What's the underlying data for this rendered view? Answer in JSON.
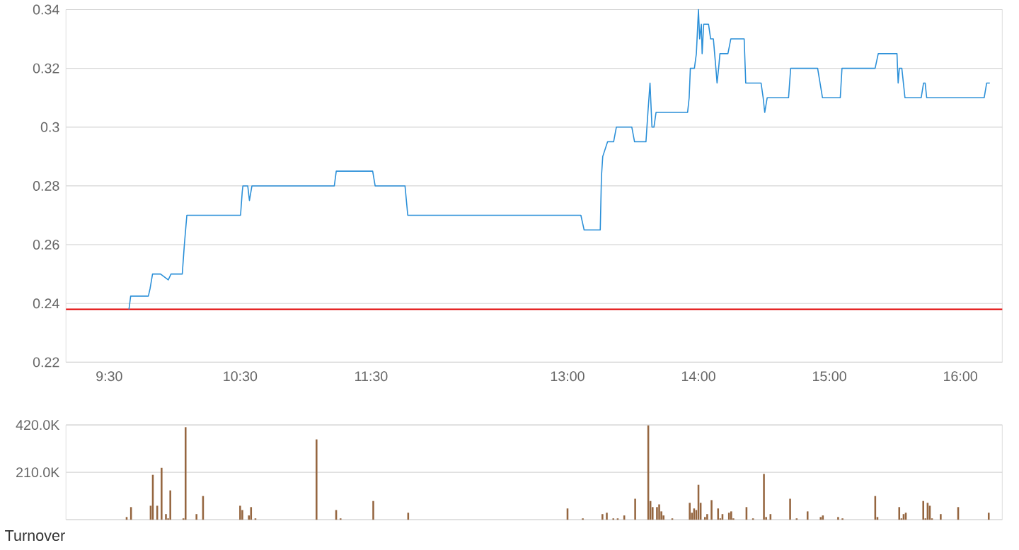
{
  "chart_data": [
    {
      "type": "line",
      "xlim": [
        9.17,
        16.32
      ],
      "ylim": [
        0.22,
        0.34
      ],
      "xticks": [
        {
          "value": 9.5,
          "label": "9:30"
        },
        {
          "value": 10.5,
          "label": "10:30"
        },
        {
          "value": 11.5,
          "label": "11:30"
        },
        {
          "value": 13,
          "label": "13:00"
        },
        {
          "value": 14,
          "label": "14:00"
        },
        {
          "value": 15,
          "label": "15:00"
        },
        {
          "value": 16,
          "label": "16:00"
        }
      ],
      "yticks": [
        0.22,
        0.24,
        0.26,
        0.28,
        0.3,
        0.32,
        0.34
      ],
      "grid": "y",
      "ref_lines": [
        {
          "axis": "y",
          "value": 0.238,
          "color": "#e00000"
        }
      ],
      "series": [
        {
          "color": "#2a8fd8",
          "x": [
            9.651,
            9.664,
            9.799,
            9.812,
            9.831,
            9.892,
            9.951,
            9.972,
            10.058,
            10.074,
            10.093,
            10.503,
            10.516,
            10.521,
            10.558,
            10.571,
            10.59,
            11.219,
            11.234,
            11.512,
            11.531,
            11.759,
            11.78,
            12.0,
            13.0,
            13.102,
            13.127,
            13.25,
            13.259,
            13.269,
            13.306,
            13.352,
            13.373,
            13.491,
            13.512,
            13.599,
            13.614,
            13.63,
            13.645,
            13.66,
            13.676,
            13.917,
            13.929,
            13.938,
            13.969,
            13.984,
            14.0,
            14.009,
            14.022,
            14.028,
            14.04,
            14.077,
            14.093,
            14.114,
            14.133,
            14.142,
            14.154,
            14.164,
            14.225,
            14.247,
            14.349,
            14.361,
            14.478,
            14.494,
            14.506,
            14.525,
            14.688,
            14.704,
            14.91,
            14.947,
            15.083,
            15.096,
            15.349,
            15.373,
            15.516,
            15.525,
            15.534,
            15.553,
            15.565,
            15.577,
            15.701,
            15.719,
            15.731,
            15.743,
            16.182,
            16.201,
            16.225
          ],
          "values": [
            0.238,
            0.2425,
            0.2425,
            0.245,
            0.25,
            0.25,
            0.248,
            0.25,
            0.25,
            0.26,
            0.27,
            0.27,
            0.278,
            0.28,
            0.28,
            0.275,
            0.28,
            0.28,
            0.285,
            0.285,
            0.28,
            0.28,
            0.27,
            0.27,
            0.27,
            0.27,
            0.265,
            0.265,
            0.283,
            0.29,
            0.295,
            0.295,
            0.3,
            0.3,
            0.295,
            0.295,
            0.305,
            0.315,
            0.3,
            0.3,
            0.305,
            0.305,
            0.31,
            0.32,
            0.32,
            0.325,
            0.34,
            0.33,
            0.335,
            0.325,
            0.335,
            0.335,
            0.33,
            0.33,
            0.32,
            0.315,
            0.32,
            0.325,
            0.325,
            0.33,
            0.33,
            0.315,
            0.315,
            0.31,
            0.305,
            0.31,
            0.31,
            0.32,
            0.32,
            0.31,
            0.31,
            0.32,
            0.32,
            0.325,
            0.325,
            0.315,
            0.32,
            0.32,
            0.315,
            0.31,
            0.31,
            0.315,
            0.315,
            0.31,
            0.31,
            0.315,
            0.315
          ]
        }
      ]
    },
    {
      "type": "bar",
      "xlabel": "Turnover",
      "xlim": [
        9.17,
        16.32
      ],
      "ylim": [
        0,
        420000
      ],
      "yticks": [
        {
          "value": 0,
          "label": null
        },
        {
          "value": 210000,
          "label": "210.0K"
        },
        {
          "value": 420000,
          "label": "420.0K"
        }
      ],
      "grid": "y",
      "tick_labels": "y",
      "x": [
        9.6333,
        9.6667,
        9.8167,
        9.8333,
        9.8667,
        9.9,
        9.9333,
        9.95,
        9.9667,
        10.0667,
        10.0833,
        10.1667,
        10.2167,
        10.5,
        10.5167,
        10.5667,
        10.5833,
        10.6167,
        11.0833,
        11.2333,
        11.2667,
        11.5167,
        11.7833,
        13.0,
        13.1167,
        13.2667,
        13.3,
        13.35,
        13.3833,
        13.4333,
        13.5167,
        13.6167,
        13.6333,
        13.65,
        13.6833,
        13.7,
        13.7167,
        13.7333,
        13.8,
        13.9333,
        13.95,
        13.9667,
        13.9833,
        14.0,
        14.0167,
        14.05,
        14.0667,
        14.1,
        14.15,
        14.1667,
        14.1833,
        14.2333,
        14.25,
        14.2667,
        14.3667,
        14.4167,
        14.5,
        14.5167,
        14.55,
        14.7,
        14.75,
        14.8333,
        14.9333,
        14.95,
        15.0667,
        15.1,
        15.35,
        15.3667,
        15.5333,
        15.55,
        15.5667,
        15.5833,
        15.7167,
        15.7333,
        15.75,
        15.7667,
        15.7833,
        15.85,
        15.9833,
        16.2167
      ],
      "series": [
        {
          "color": "#956640",
          "values": [
            12000,
            56000,
            62000,
            199000,
            62000,
            230000,
            25000,
            6000,
            130000,
            6000,
            410000,
            25000,
            105000,
            62000,
            43000,
            19000,
            56000,
            6000,
            356000,
            43000,
            6000,
            83000,
            31000,
            50000,
            6000,
            25000,
            31000,
            6000,
            6000,
            19000,
            93000,
            418000,
            83000,
            56000,
            56000,
            68000,
            37000,
            19000,
            6000,
            75000,
            31000,
            50000,
            43000,
            155000,
            75000,
            12000,
            25000,
            87000,
            50000,
            6000,
            25000,
            31000,
            37000,
            6000,
            56000,
            6000,
            203000,
            12000,
            25000,
            93000,
            6000,
            37000,
            12000,
            19000,
            12000,
            6000,
            105000,
            12000,
            56000,
            6000,
            25000,
            31000,
            83000,
            6000,
            75000,
            62000,
            6000,
            25000,
            56000,
            31000
          ]
        }
      ]
    }
  ]
}
